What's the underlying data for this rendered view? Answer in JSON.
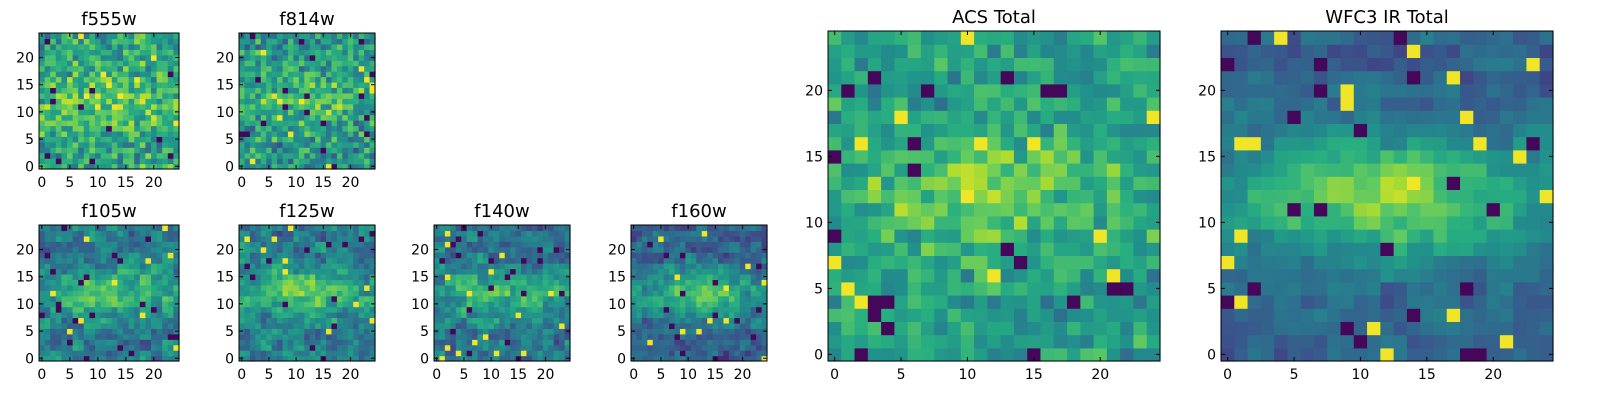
{
  "chart_data": [
    {
      "type": "heatmap",
      "title": "f555w",
      "xlim": [
        -0.5,
        24.5
      ],
      "ylim": [
        -0.5,
        24.5
      ],
      "origin": "lower",
      "xticks": [
        0,
        5,
        10,
        15,
        20
      ],
      "yticks": [
        0,
        5,
        10,
        15,
        20
      ],
      "xtick_labels": [
        "0",
        "5",
        "10",
        "15",
        "20"
      ],
      "ytick_labels": [
        "0",
        "5",
        "10",
        "15",
        "20"
      ],
      "grid": false
    },
    {
      "type": "heatmap",
      "title": "f814w",
      "xlim": [
        -0.5,
        24.5
      ],
      "ylim": [
        -0.5,
        24.5
      ],
      "origin": "lower",
      "xticks": [
        0,
        5,
        10,
        15,
        20
      ],
      "yticks": [
        0,
        5,
        10,
        15,
        20
      ],
      "xtick_labels": [
        "0",
        "5",
        "10",
        "15",
        "20"
      ],
      "ytick_labels": [
        "0",
        "5",
        "10",
        "15",
        "20"
      ],
      "grid": false
    },
    {
      "type": "heatmap",
      "title": "f105w",
      "xlim": [
        -0.5,
        24.5
      ],
      "ylim": [
        -0.5,
        24.5
      ],
      "origin": "lower",
      "xticks": [
        0,
        5,
        10,
        15,
        20
      ],
      "yticks": [
        0,
        5,
        10,
        15,
        20
      ],
      "xtick_labels": [
        "0",
        "5",
        "10",
        "15",
        "20"
      ],
      "ytick_labels": [
        "0",
        "5",
        "10",
        "15",
        "20"
      ],
      "grid": false
    },
    {
      "type": "heatmap",
      "title": "f125w",
      "xlim": [
        -0.5,
        24.5
      ],
      "ylim": [
        -0.5,
        24.5
      ],
      "origin": "lower",
      "xticks": [
        0,
        5,
        10,
        15,
        20
      ],
      "yticks": [
        0,
        5,
        10,
        15,
        20
      ],
      "xtick_labels": [
        "0",
        "5",
        "10",
        "15",
        "20"
      ],
      "ytick_labels": [
        "0",
        "5",
        "10",
        "15",
        "20"
      ],
      "grid": false
    },
    {
      "type": "heatmap",
      "title": "f140w",
      "xlim": [
        -0.5,
        24.5
      ],
      "ylim": [
        -0.5,
        24.5
      ],
      "origin": "lower",
      "xticks": [
        0,
        5,
        10,
        15,
        20
      ],
      "yticks": [
        0,
        5,
        10,
        15,
        20
      ],
      "xtick_labels": [
        "0",
        "5",
        "10",
        "15",
        "20"
      ],
      "ytick_labels": [
        "0",
        "5",
        "10",
        "15",
        "20"
      ],
      "grid": false
    },
    {
      "type": "heatmap",
      "title": "f160w",
      "xlim": [
        -0.5,
        24.5
      ],
      "ylim": [
        -0.5,
        24.5
      ],
      "origin": "lower",
      "xticks": [
        0,
        5,
        10,
        15,
        20
      ],
      "yticks": [
        0,
        5,
        10,
        15,
        20
      ],
      "xtick_labels": [
        "0",
        "5",
        "10",
        "15",
        "20"
      ],
      "ytick_labels": [
        "0",
        "5",
        "10",
        "15",
        "20"
      ],
      "grid": false
    },
    {
      "type": "heatmap",
      "title": "ACS Total",
      "xlim": [
        -0.5,
        24.5
      ],
      "ylim": [
        -0.5,
        24.5
      ],
      "origin": "lower",
      "xticks": [
        0,
        5,
        10,
        15,
        20
      ],
      "yticks": [
        0,
        5,
        10,
        15,
        20
      ],
      "xtick_labels": [
        "0",
        "5",
        "10",
        "15",
        "20"
      ],
      "ytick_labels": [
        "0",
        "5",
        "10",
        "15",
        "20"
      ],
      "grid": false
    },
    {
      "type": "heatmap",
      "title": "WFC3 IR Total",
      "xlim": [
        -0.5,
        24.5
      ],
      "ylim": [
        -0.5,
        24.5
      ],
      "origin": "lower",
      "xticks": [
        0,
        5,
        10,
        15,
        20
      ],
      "yticks": [
        0,
        5,
        10,
        15,
        20
      ],
      "xtick_labels": [
        "0",
        "5",
        "10",
        "15",
        "20"
      ],
      "ytick_labels": [
        "0",
        "5",
        "10",
        "15",
        "20"
      ],
      "grid": false
    }
  ],
  "colormap": "viridis",
  "colors": {
    "low": "#440154",
    "mid": "#21918c",
    "high": "#fde725"
  }
}
